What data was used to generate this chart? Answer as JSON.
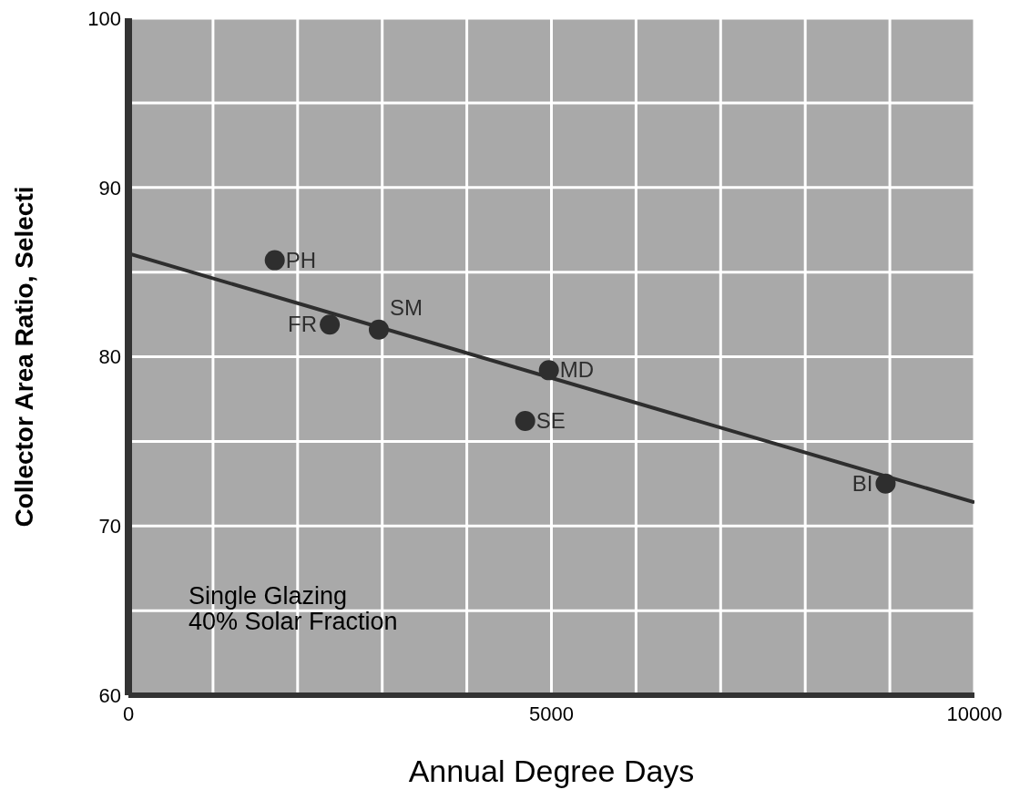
{
  "chart_data": {
    "type": "scatter",
    "xlabel": "Annual Degree Days",
    "ylabel": "Collector Area Ratio, Selecti",
    "xlim": [
      0,
      10000
    ],
    "ylim": [
      60,
      100
    ],
    "xticks": [
      0,
      {
        "value": 1000,
        "label": null
      },
      {
        "value": 2000,
        "label": null
      },
      {
        "value": 3000,
        "label": null
      },
      {
        "value": 4000,
        "label": null
      },
      5000,
      {
        "value": 6000,
        "label": null
      },
      {
        "value": 7000,
        "label": null
      },
      {
        "value": 8000,
        "label": null
      },
      {
        "value": 9000,
        "label": null
      },
      10000
    ],
    "yticks": [
      60,
      {
        "value": 65,
        "label": null
      },
      70,
      {
        "value": 75,
        "label": null
      },
      80,
      {
        "value": 85,
        "label": null
      },
      90,
      {
        "value": 95,
        "label": null
      },
      100
    ],
    "grid": true,
    "marker": "circle",
    "series": [
      {
        "color": "#2e2e2e",
        "x": [
          1730,
          2380,
          2960,
          4970,
          4690,
          8950
        ],
        "values": [
          85.7,
          81.9,
          81.6,
          79.2,
          76.2,
          72.5
        ]
      },
      {
        "type": "line",
        "color": "#2e2e2e",
        "x": [
          0,
          10000
        ],
        "values": [
          86.1,
          71.4
        ],
        "line_style": "solid",
        "marker": "none"
      }
    ],
    "annotations": [
      {
        "text": "PH",
        "x": 1730,
        "y": 85.7
      },
      {
        "text": "FR",
        "x": 2380,
        "y": 81.9
      },
      {
        "text": "SM",
        "x": 2960,
        "y": 81.6
      },
      {
        "text": "MD",
        "x": 4970,
        "y": 79.2
      },
      {
        "text": "SE",
        "x": 4690,
        "y": 76.2
      },
      {
        "text": "BI",
        "x": 8950,
        "y": 72.5
      },
      "Single Glazing",
      "40% Solar Fraction"
    ]
  }
}
